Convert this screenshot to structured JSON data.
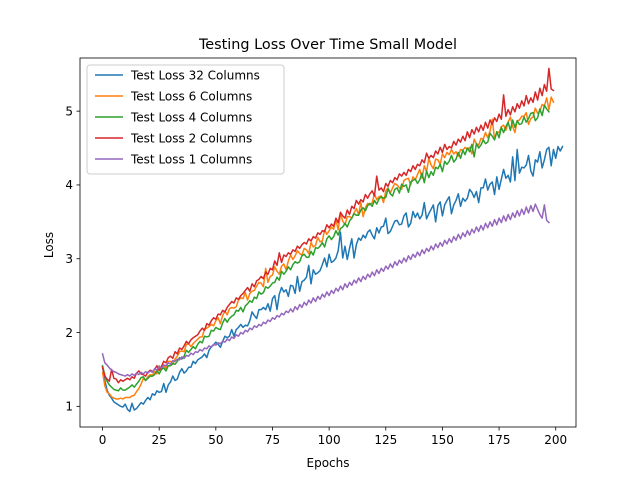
{
  "chart_data": {
    "type": "line",
    "title": "Testing Loss Over Time Small Model",
    "xlabel": "Epochs",
    "ylabel": "Loss",
    "xlim": [
      -9.95,
      208.95
    ],
    "ylim": [
      0.72,
      5.72
    ],
    "xticks": [
      0,
      25,
      50,
      75,
      100,
      125,
      150,
      175,
      200
    ],
    "yticks": [
      1,
      2,
      3,
      4,
      5
    ],
    "grid": false,
    "legend_position": "upper-left",
    "x": {
      "start": 0,
      "end": 199,
      "step": 1
    },
    "series": [
      {
        "name": "Test Loss 32 Columns",
        "color": "#1f77b4",
        "values": [
          1.54,
          1.35,
          1.22,
          1.15,
          1.11,
          1.06,
          1.04,
          1.02,
          1.0,
          0.99,
          1.03,
          0.96,
          0.93,
          1.04,
          0.95,
          0.97,
          1.01,
          1.05,
          1.03,
          1.08,
          1.12,
          1.09,
          1.17,
          1.15,
          1.21,
          1.19,
          1.2,
          1.31,
          1.19,
          1.29,
          1.33,
          1.41,
          1.35,
          1.37,
          1.46,
          1.51,
          1.45,
          1.48,
          1.53,
          1.53,
          1.61,
          1.58,
          1.63,
          1.65,
          1.67,
          1.71,
          1.66,
          1.76,
          1.81,
          1.83,
          1.87,
          1.84,
          1.8,
          1.88,
          1.95,
          1.93,
          1.95,
          2.04,
          1.95,
          2.04,
          2.07,
          2.11,
          2.07,
          2.1,
          2.09,
          2.16,
          2.28,
          2.23,
          2.19,
          2.31,
          2.31,
          2.34,
          2.31,
          2.39,
          2.29,
          2.46,
          2.5,
          2.31,
          2.52,
          2.61,
          2.55,
          2.58,
          2.49,
          2.64,
          2.63,
          2.53,
          2.76,
          2.56,
          2.69,
          2.71,
          2.75,
          2.91,
          2.66,
          2.85,
          2.79,
          2.81,
          2.84,
          2.92,
          3.01,
          2.89,
          3.06,
          2.95,
          2.97,
          3.01,
          3.11,
          3.36,
          3.01,
          3.17,
          2.99,
          3.14,
          3.27,
          3.01,
          3.19,
          3.28,
          3.25,
          3.32,
          3.28,
          3.36,
          3.39,
          3.32,
          3.27,
          3.42,
          3.35,
          3.43,
          3.44,
          3.55,
          3.34,
          3.37,
          3.44,
          3.51,
          3.52,
          3.46,
          3.47,
          3.58,
          3.62,
          3.43,
          3.48,
          3.64,
          3.56,
          3.62,
          3.54,
          3.59,
          3.76,
          3.54,
          3.61,
          3.67,
          3.73,
          3.5,
          3.72,
          3.77,
          3.58,
          3.73,
          3.79,
          3.84,
          3.61,
          3.73,
          3.79,
          3.88,
          3.71,
          3.82,
          3.78,
          3.82,
          3.94,
          3.9,
          3.83,
          3.91,
          3.76,
          3.96,
          3.96,
          4.08,
          3.93,
          4.01,
          4.04,
          3.87,
          4.11,
          3.94,
          4.08,
          4.21,
          4.09,
          4.13,
          4.04,
          4.38,
          4.06,
          4.48,
          4.16,
          4.24,
          4.23,
          4.27,
          4.4,
          4.19,
          4.12,
          4.34,
          4.31,
          4.45,
          4.23,
          4.34,
          4.48,
          4.51,
          4.26,
          4.48,
          4.36,
          4.52,
          4.46,
          4.52
        ]
      },
      {
        "name": "Test Loss 6 Columns",
        "color": "#ff7f0e",
        "values": [
          1.46,
          1.28,
          1.19,
          1.17,
          1.13,
          1.11,
          1.1,
          1.1,
          1.11,
          1.1,
          1.12,
          1.12,
          1.12,
          1.14,
          1.15,
          1.2,
          1.24,
          1.3,
          1.38,
          1.35,
          1.4,
          1.43,
          1.42,
          1.47,
          1.44,
          1.55,
          1.5,
          1.56,
          1.51,
          1.61,
          1.61,
          1.57,
          1.64,
          1.68,
          1.74,
          1.75,
          1.74,
          1.84,
          1.85,
          1.81,
          1.85,
          1.88,
          1.91,
          1.94,
          1.94,
          2.05,
          2.06,
          2.08,
          2.11,
          2.09,
          2.16,
          2.2,
          2.12,
          2.23,
          2.29,
          2.24,
          2.32,
          2.34,
          2.33,
          2.35,
          2.44,
          2.47,
          2.46,
          2.54,
          2.44,
          2.53,
          2.56,
          2.57,
          2.63,
          2.68,
          2.67,
          2.62,
          2.87,
          2.68,
          2.76,
          2.78,
          2.89,
          2.83,
          2.79,
          2.9,
          2.93,
          2.85,
          2.97,
          3.05,
          2.99,
          3.04,
          3.11,
          3.07,
          3.05,
          3.14,
          3.12,
          3.07,
          3.22,
          3.16,
          3.18,
          3.29,
          3.23,
          3.24,
          3.39,
          3.33,
          3.38,
          3.43,
          3.4,
          3.53,
          3.39,
          3.61,
          3.51,
          3.46,
          3.57,
          3.57,
          3.55,
          3.62,
          3.68,
          3.6,
          3.76,
          3.57,
          3.69,
          3.75,
          3.73,
          3.76,
          3.88,
          3.8,
          3.84,
          3.85,
          3.76,
          3.92,
          3.96,
          3.89,
          3.96,
          4.02,
          4.0,
          3.96,
          3.94,
          4.06,
          4.08,
          4.09,
          4.0,
          4.11,
          4.07,
          4.14,
          4.21,
          4.09,
          4.26,
          4.18,
          4.36,
          4.27,
          4.22,
          4.35,
          4.34,
          4.28,
          4.42,
          4.37,
          4.44,
          4.41,
          4.48,
          4.42,
          4.45,
          4.39,
          4.48,
          4.47,
          4.51,
          4.48,
          4.51,
          4.42,
          4.62,
          4.56,
          4.54,
          4.63,
          4.62,
          4.71,
          4.64,
          4.73,
          4.89,
          4.62,
          4.72,
          4.71,
          4.79,
          4.81,
          4.74,
          4.85,
          4.92,
          4.79,
          4.71,
          4.87,
          4.88,
          4.93,
          4.93,
          4.98,
          4.82,
          4.9,
          4.92,
          5.04,
          4.97,
          5.0,
          5.09,
          5.07,
          5.18,
          5.02,
          5.19,
          5.12
        ]
      },
      {
        "name": "Test Loss 4 Columns",
        "color": "#2ca02c",
        "values": [
          1.55,
          1.42,
          1.34,
          1.29,
          1.26,
          1.23,
          1.22,
          1.21,
          1.25,
          1.22,
          1.22,
          1.24,
          1.26,
          1.29,
          1.26,
          1.3,
          1.34,
          1.39,
          1.4,
          1.35,
          1.38,
          1.41,
          1.41,
          1.43,
          1.49,
          1.44,
          1.5,
          1.52,
          1.48,
          1.55,
          1.55,
          1.58,
          1.57,
          1.61,
          1.66,
          1.64,
          1.68,
          1.76,
          1.73,
          1.77,
          1.81,
          1.78,
          1.84,
          1.88,
          1.86,
          1.95,
          1.94,
          1.95,
          2.03,
          2.02,
          2.07,
          2.05,
          2.04,
          2.13,
          2.19,
          2.14,
          2.19,
          2.22,
          2.24,
          2.3,
          2.29,
          2.34,
          2.28,
          2.36,
          2.39,
          2.43,
          2.41,
          2.48,
          2.46,
          2.55,
          2.52,
          2.54,
          2.62,
          2.6,
          2.63,
          2.67,
          2.68,
          2.75,
          2.71,
          2.83,
          2.79,
          2.83,
          2.89,
          2.85,
          2.92,
          2.96,
          2.94,
          2.96,
          3.04,
          3.06,
          3.02,
          3.02,
          3.1,
          3.05,
          3.15,
          3.14,
          3.17,
          3.22,
          3.16,
          3.27,
          3.31,
          3.26,
          3.3,
          3.38,
          3.32,
          3.41,
          3.43,
          3.48,
          3.43,
          3.51,
          3.55,
          3.61,
          3.59,
          3.59,
          3.66,
          3.69,
          3.65,
          3.72,
          3.75,
          3.71,
          3.79,
          3.74,
          3.81,
          3.84,
          3.82,
          3.83,
          3.95,
          3.88,
          3.85,
          3.94,
          3.96,
          3.89,
          4.01,
          3.98,
          4.0,
          3.9,
          4.04,
          4.06,
          4.08,
          4.02,
          4.07,
          4.16,
          4.03,
          4.19,
          4.1,
          4.18,
          4.13,
          4.24,
          4.22,
          4.28,
          4.18,
          4.32,
          4.28,
          4.32,
          4.4,
          4.31,
          4.35,
          4.44,
          4.36,
          4.47,
          4.41,
          4.5,
          4.45,
          4.55,
          4.38,
          4.56,
          4.5,
          4.54,
          4.61,
          4.56,
          4.58,
          4.7,
          4.66,
          4.61,
          4.72,
          4.64,
          4.78,
          4.71,
          4.79,
          4.85,
          4.74,
          4.88,
          4.78,
          4.87,
          4.82,
          4.83,
          4.92,
          4.85,
          4.9,
          4.97,
          4.98,
          4.87,
          4.91,
          5.03,
          4.94,
          5.08,
          5.03,
          4.99
        ]
      },
      {
        "name": "Test Loss 2 Columns",
        "color": "#d62728",
        "values": [
          1.53,
          1.41,
          1.37,
          1.34,
          1.5,
          1.38,
          1.37,
          1.32,
          1.36,
          1.34,
          1.36,
          1.38,
          1.36,
          1.4,
          1.38,
          1.45,
          1.48,
          1.44,
          1.43,
          1.41,
          1.46,
          1.49,
          1.47,
          1.5,
          1.55,
          1.49,
          1.54,
          1.61,
          1.59,
          1.66,
          1.68,
          1.65,
          1.74,
          1.71,
          1.79,
          1.77,
          1.82,
          1.88,
          1.85,
          1.9,
          1.93,
          1.95,
          1.97,
          2.02,
          2.06,
          2.03,
          2.12,
          2.1,
          2.16,
          2.2,
          2.18,
          2.25,
          2.24,
          2.3,
          2.28,
          2.34,
          2.38,
          2.42,
          2.4,
          2.47,
          2.45,
          2.5,
          2.53,
          2.57,
          2.61,
          2.56,
          2.66,
          2.62,
          2.7,
          2.72,
          2.76,
          2.73,
          2.82,
          2.79,
          2.87,
          2.85,
          2.97,
          2.91,
          3.08,
          2.95,
          3.05,
          3.03,
          3.08,
          3.06,
          3.12,
          3.1,
          3.17,
          3.14,
          3.19,
          3.22,
          3.2,
          3.27,
          3.24,
          3.3,
          3.28,
          3.35,
          3.33,
          3.38,
          3.37,
          3.46,
          3.42,
          3.47,
          3.44,
          3.55,
          3.49,
          3.63,
          3.58,
          3.55,
          3.66,
          3.6,
          3.71,
          3.68,
          3.79,
          3.74,
          3.8,
          3.77,
          3.87,
          3.82,
          3.88,
          3.92,
          3.85,
          4.12,
          3.93,
          3.96,
          3.91,
          4.02,
          3.98,
          4.06,
          4.03,
          4.1,
          4.07,
          4.15,
          4.12,
          4.17,
          4.13,
          4.21,
          4.18,
          4.26,
          4.21,
          4.28,
          4.26,
          4.34,
          4.3,
          4.43,
          4.36,
          4.4,
          4.37,
          4.46,
          4.42,
          4.51,
          4.44,
          4.55,
          4.48,
          4.52,
          4.5,
          4.59,
          4.54,
          4.62,
          4.58,
          4.66,
          4.6,
          4.72,
          4.64,
          4.75,
          4.69,
          4.78,
          4.72,
          4.81,
          4.74,
          4.85,
          4.77,
          4.88,
          4.82,
          4.91,
          4.86,
          4.96,
          4.89,
          5.22,
          4.93,
          5.02,
          4.95,
          5.06,
          4.99,
          5.1,
          5.04,
          5.14,
          5.07,
          5.21,
          5.1,
          5.18,
          5.12,
          5.26,
          5.15,
          5.31,
          5.21,
          5.36,
          5.27,
          5.58,
          5.3,
          5.28
        ]
      },
      {
        "name": "Test Loss 1 Columns",
        "color": "#9467bd",
        "values": [
          1.71,
          1.59,
          1.56,
          1.52,
          1.49,
          1.47,
          1.46,
          1.44,
          1.43,
          1.42,
          1.41,
          1.43,
          1.41,
          1.44,
          1.42,
          1.45,
          1.43,
          1.46,
          1.44,
          1.47,
          1.45,
          1.48,
          1.46,
          1.51,
          1.49,
          1.54,
          1.52,
          1.56,
          1.55,
          1.59,
          1.57,
          1.62,
          1.61,
          1.64,
          1.63,
          1.67,
          1.65,
          1.69,
          1.68,
          1.72,
          1.7,
          1.74,
          1.73,
          1.77,
          1.75,
          1.79,
          1.78,
          1.82,
          1.8,
          1.84,
          1.83,
          1.86,
          1.85,
          1.88,
          1.87,
          1.91,
          1.89,
          1.94,
          1.92,
          1.97,
          1.95,
          2.0,
          1.98,
          2.03,
          2.01,
          2.06,
          2.04,
          2.09,
          2.07,
          2.11,
          2.09,
          2.14,
          2.12,
          2.17,
          2.15,
          2.2,
          2.18,
          2.23,
          2.21,
          2.26,
          2.24,
          2.29,
          2.27,
          2.32,
          2.28,
          2.35,
          2.31,
          2.38,
          2.34,
          2.41,
          2.37,
          2.44,
          2.4,
          2.47,
          2.42,
          2.49,
          2.45,
          2.52,
          2.48,
          2.55,
          2.5,
          2.57,
          2.53,
          2.6,
          2.56,
          2.63,
          2.58,
          2.66,
          2.61,
          2.68,
          2.64,
          2.71,
          2.67,
          2.74,
          2.69,
          2.76,
          2.72,
          2.79,
          2.75,
          2.82,
          2.77,
          2.85,
          2.8,
          2.87,
          2.83,
          2.9,
          2.86,
          2.93,
          2.88,
          2.96,
          2.91,
          2.98,
          2.94,
          3.01,
          2.96,
          3.04,
          2.99,
          3.06,
          3.02,
          3.09,
          3.04,
          3.12,
          3.07,
          3.14,
          3.1,
          3.17,
          3.12,
          3.2,
          3.15,
          3.22,
          3.17,
          3.25,
          3.2,
          3.27,
          3.22,
          3.3,
          3.25,
          3.33,
          3.27,
          3.35,
          3.3,
          3.38,
          3.32,
          3.4,
          3.35,
          3.43,
          3.37,
          3.45,
          3.39,
          3.48,
          3.42,
          3.5,
          3.44,
          3.53,
          3.46,
          3.55,
          3.49,
          3.58,
          3.51,
          3.6,
          3.53,
          3.62,
          3.56,
          3.65,
          3.58,
          3.67,
          3.6,
          3.7,
          3.62,
          3.72,
          3.64,
          3.74,
          3.67,
          3.6,
          3.55,
          3.73,
          3.52,
          3.49
        ]
      }
    ]
  }
}
